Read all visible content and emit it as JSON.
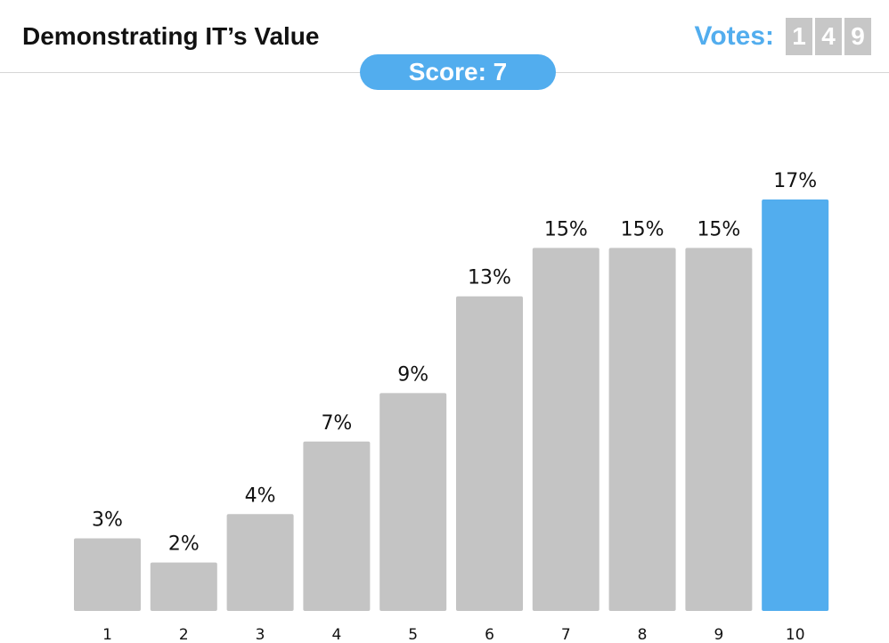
{
  "header": {
    "title": "Demonstrating IT’s Value",
    "votes_label": "Votes:",
    "votes_digits": [
      "1",
      "4",
      "9"
    ]
  },
  "score": {
    "label": "Score: 7"
  },
  "colors": {
    "accent": "#52adee",
    "bar": "#c4c4c4",
    "digit_bg": "#c7c7c7"
  },
  "chart_data": {
    "type": "bar",
    "categories": [
      "1",
      "2",
      "3",
      "4",
      "5",
      "6",
      "7",
      "8",
      "9",
      "10"
    ],
    "values": [
      3,
      2,
      4,
      7,
      9,
      13,
      15,
      15,
      15,
      17
    ],
    "data_labels": [
      "3%",
      "2%",
      "4%",
      "7%",
      "9%",
      "13%",
      "15%",
      "15%",
      "15%",
      "17%"
    ],
    "highlighted_category": "10",
    "ylim": [
      0,
      17
    ],
    "title": "",
    "xlabel": "",
    "ylabel": "",
    "grid": false,
    "legend": "none"
  }
}
